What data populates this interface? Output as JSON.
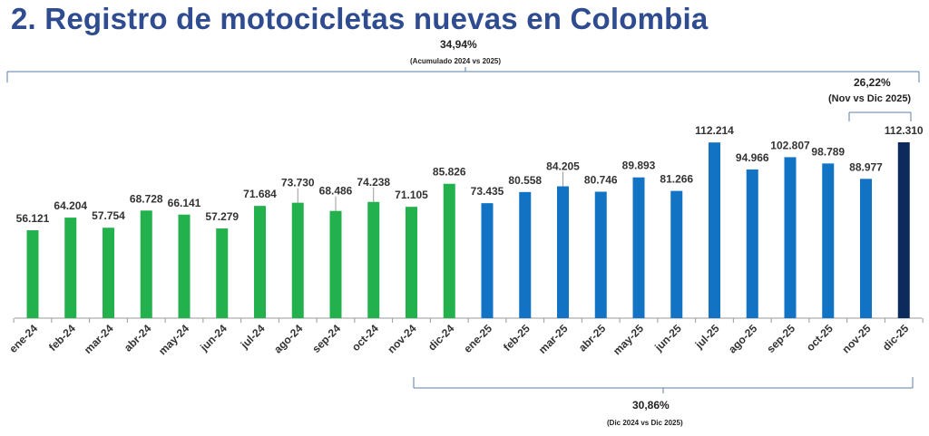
{
  "title": "2. Registro de motocicletas nuevas en Colombia",
  "annotations": {
    "accumulated": {
      "value": "34,94%",
      "label": "(Acumulado 2024 vs 2025)"
    },
    "monthly": {
      "value": "26,22%",
      "label": "(Nov vs Dic 2025)"
    },
    "yearly": {
      "value": "30,86%",
      "label": "(Dic 2024 vs Dic 2025)"
    }
  },
  "colors": {
    "title": "#2e4c8f",
    "bars_2024": "#22b14c",
    "bars_2025": "#1273c4",
    "bar_highlight": "#0d2a5c",
    "bracket": "#5a7fa8",
    "axis": "#999999"
  },
  "chart_data": {
    "type": "bar",
    "title": "2. Registro de motocicletas nuevas en Colombia",
    "xlabel": "",
    "ylabel": "",
    "ylim": [
      0,
      120000
    ],
    "grid": false,
    "legend": "none",
    "categories": [
      "ene-24",
      "feb-24",
      "mar-24",
      "abr-24",
      "may-24",
      "jun-24",
      "jul-24",
      "ago-24",
      "sep-24",
      "oct-24",
      "nov-24",
      "dic-24",
      "ene-25",
      "feb-25",
      "mar-25",
      "abr-25",
      "may-25",
      "jun-25",
      "jul-25",
      "ago-25",
      "sep-25",
      "oct-25",
      "nov-25",
      "dic-25"
    ],
    "values": [
      56121,
      64204,
      57754,
      68728,
      66141,
      57279,
      71684,
      73730,
      68486,
      74238,
      71105,
      85826,
      73435,
      80558,
      84205,
      80746,
      89893,
      81266,
      112214,
      94966,
      102807,
      98789,
      88977,
      112310
    ],
    "value_labels": [
      "56.121",
      "64.204",
      "57.754",
      "68.728",
      "66.141",
      "57.279",
      "71.684",
      "73.730",
      "68.486",
      "74.238",
      "71.105",
      "85.826",
      "73.435",
      "80.558",
      "84.205",
      "80.746",
      "89.893",
      "81.266",
      "112.214",
      "94.966",
      "102.807",
      "98.789",
      "88.977",
      "112.310"
    ],
    "bar_colors": [
      "#22b14c",
      "#22b14c",
      "#22b14c",
      "#22b14c",
      "#22b14c",
      "#22b14c",
      "#22b14c",
      "#22b14c",
      "#22b14c",
      "#22b14c",
      "#22b14c",
      "#22b14c",
      "#1273c4",
      "#1273c4",
      "#1273c4",
      "#1273c4",
      "#1273c4",
      "#1273c4",
      "#1273c4",
      "#1273c4",
      "#1273c4",
      "#1273c4",
      "#1273c4",
      "#0d2a5c"
    ]
  }
}
